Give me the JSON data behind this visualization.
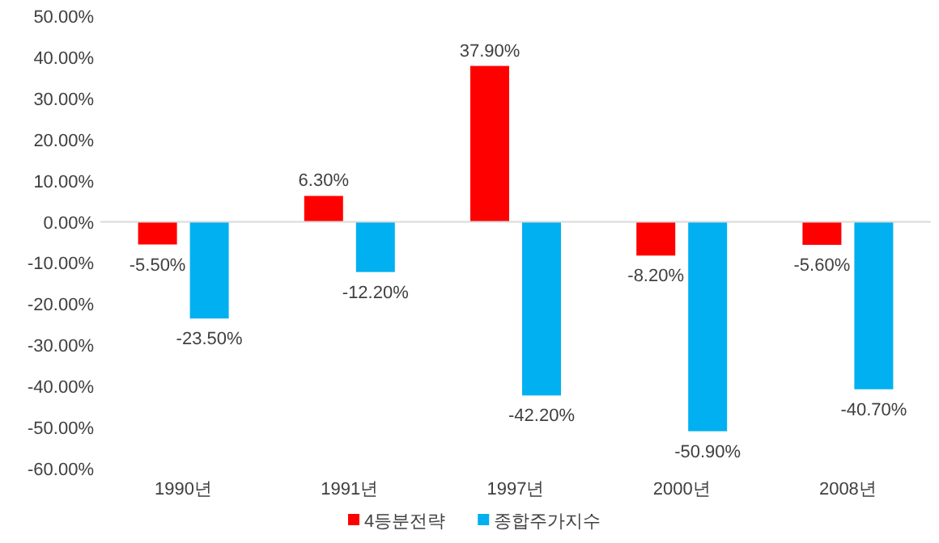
{
  "chart_data": {
    "type": "bar",
    "categories": [
      "1990년",
      "1991년",
      "1997년",
      "2000년",
      "2008년"
    ],
    "series": [
      {
        "name": "4등분전략",
        "color": "#ff0000",
        "values": [
          -5.5,
          6.3,
          37.9,
          -8.2,
          -5.6
        ],
        "value_labels": [
          "-5.50%",
          "6.30%",
          "37.90%",
          "-8.20%",
          "-5.60%"
        ]
      },
      {
        "name": "종합주가지수",
        "color": "#00b0f0",
        "values": [
          -23.5,
          -12.2,
          -42.2,
          -50.9,
          -40.7
        ],
        "value_labels": [
          "-23.50%",
          "-12.20%",
          "-42.20%",
          "-50.90%",
          "-40.70%"
        ]
      }
    ],
    "ylim": [
      -60,
      50
    ],
    "yticks": [
      {
        "value": 50,
        "label": "50.00%"
      },
      {
        "value": 40,
        "label": "40.00%"
      },
      {
        "value": 30,
        "label": "30.00%"
      },
      {
        "value": 20,
        "label": "20.00%"
      },
      {
        "value": 10,
        "label": "10.00%"
      },
      {
        "value": 0,
        "label": "0.00%"
      },
      {
        "value": -10,
        "label": "-10.00%"
      },
      {
        "value": -20,
        "label": "-20.00%"
      },
      {
        "value": -30,
        "label": "-30.00%"
      },
      {
        "value": -40,
        "label": "-40.00%"
      },
      {
        "value": -50,
        "label": "-50.00%"
      },
      {
        "value": -60,
        "label": "-60.00%"
      }
    ],
    "ref_lines": [
      {
        "axis": "y",
        "value": 0,
        "color": "#d9d9d9"
      }
    ],
    "legend": "bottom"
  }
}
